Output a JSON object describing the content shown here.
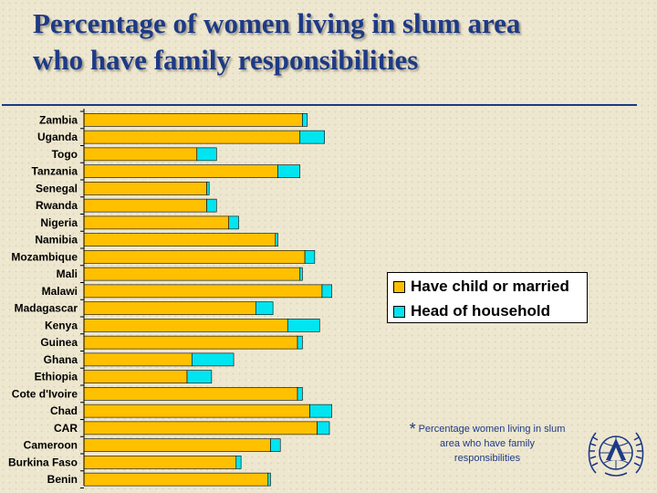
{
  "title_line1": "Percentage of women living in slum area",
  "title_line2": "who have family responsibilities",
  "legend": {
    "item1": "Have child or married",
    "item2": "Head of household"
  },
  "note": {
    "star": "*",
    "text": "Percentage women living in slum area who have family responsibilities"
  },
  "colors": {
    "title": "#1d3a86",
    "series1": "#ffc000",
    "series2": "#00e5f0"
  },
  "logo_icon": "un-habitat-logo-icon",
  "chart_data": {
    "type": "bar",
    "orientation": "horizontal",
    "stacked": true,
    "categories": [
      "Zambia",
      "Uganda",
      "Togo",
      "Tanzania",
      "Senegal",
      "Rwanda",
      "Nigeria",
      "Namibia",
      "Mozambique",
      "Mali",
      "Malawi",
      "Madagascar",
      "Kenya",
      "Guinea",
      "Ghana",
      "Ethiopia",
      "Cote d'Ivoire",
      "Chad",
      "CAR",
      "Cameroon",
      "Burkina Faso",
      "Benin"
    ],
    "series": [
      {
        "name": "Have child or married",
        "color": "#ffc000",
        "values": [
          89,
          88,
          46,
          79,
          50,
          50,
          59,
          78,
          90,
          88,
          97,
          70,
          83,
          87,
          44,
          42,
          87,
          92,
          95,
          76,
          62,
          75
        ]
      },
      {
        "name": "Head of household",
        "color": "#00e5f0",
        "values": [
          2,
          10,
          8,
          9,
          1,
          4,
          4,
          1,
          4,
          1,
          4,
          7,
          13,
          2,
          17,
          10,
          2,
          9,
          5,
          4,
          2,
          1
        ]
      }
    ],
    "xlim": [
      0,
      100
    ],
    "grid": false,
    "legend_position": "right"
  }
}
